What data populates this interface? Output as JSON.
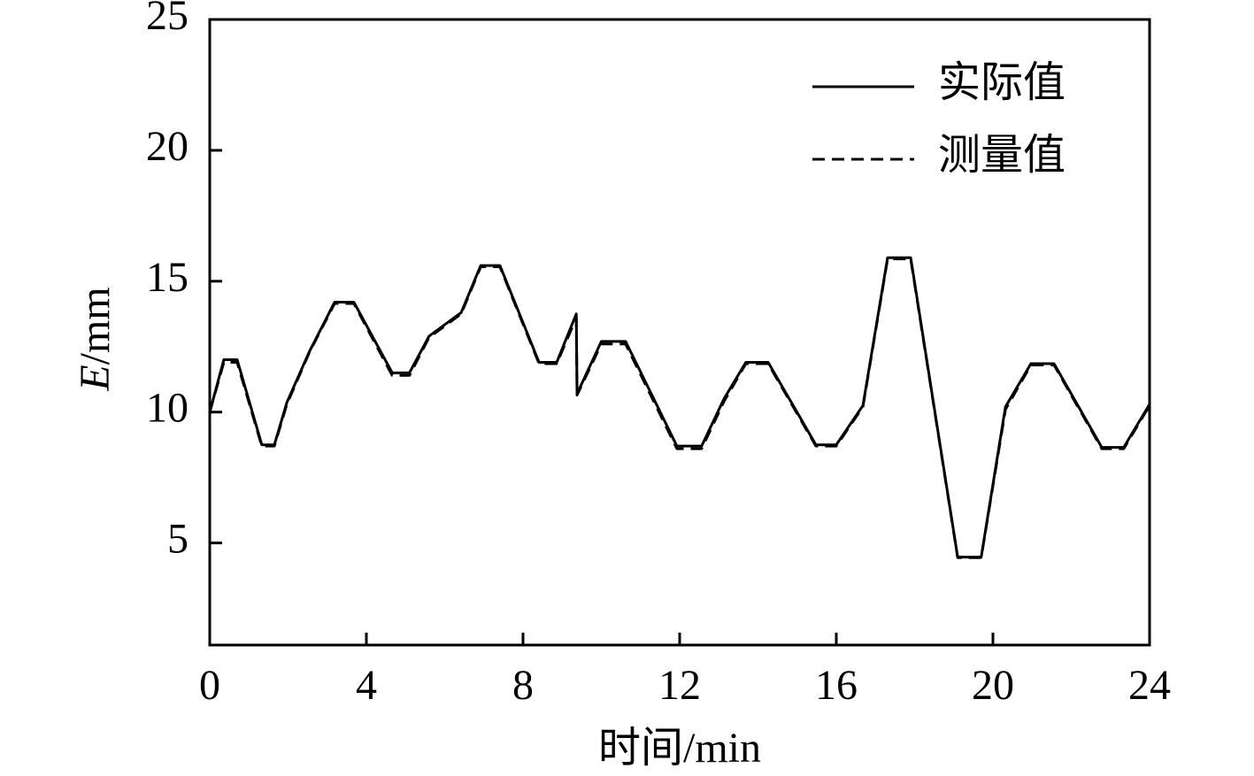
{
  "chart_data": {
    "type": "line",
    "x_label": "时间/min",
    "y_label": {
      "symbol": "E",
      "unit": "/mm"
    },
    "x": [
      0,
      0.36,
      0.7,
      1.33,
      1.65,
      1.97,
      2.55,
      3.19,
      3.68,
      4.66,
      5.1,
      5.6,
      6.42,
      6.92,
      7.41,
      8.41,
      8.86,
      9.36,
      9.38,
      10.0,
      10.62,
      11.93,
      12.56,
      13.13,
      13.69,
      14.26,
      15.48,
      16.0,
      16.68,
      17.31,
      17.9,
      19.1,
      19.7,
      20.32,
      20.97,
      21.56,
      22.78,
      23.34,
      24.0
    ],
    "series": [
      {
        "name": "实际值",
        "color": "#000000",
        "dash": false,
        "values": [
          10.0,
          12.0,
          12.0,
          8.75,
          8.75,
          10.37,
          12.33,
          14.2,
          14.2,
          11.5,
          11.5,
          12.9,
          13.8,
          15.6,
          15.6,
          11.9,
          11.9,
          13.75,
          10.7,
          12.7,
          12.7,
          8.7,
          8.7,
          10.5,
          11.9,
          11.9,
          8.75,
          8.75,
          10.25,
          15.9,
          15.9,
          4.46,
          4.46,
          10.2,
          11.85,
          11.85,
          8.65,
          8.65,
          10.3
        ]
      },
      {
        "name": "测量值",
        "color": "#000000",
        "dash": true,
        "values": [
          10.0,
          11.9,
          11.9,
          8.7,
          8.7,
          10.3,
          12.3,
          14.15,
          14.15,
          11.4,
          11.4,
          12.85,
          13.75,
          15.55,
          15.55,
          11.85,
          11.85,
          13.6,
          10.65,
          12.6,
          12.6,
          8.6,
          8.6,
          10.4,
          11.85,
          11.85,
          8.7,
          8.7,
          10.2,
          15.85,
          15.85,
          4.44,
          4.44,
          10.1,
          11.8,
          11.8,
          8.6,
          8.6,
          10.25
        ]
      }
    ],
    "xlim": [
      0,
      24
    ],
    "xticks": [
      0,
      4,
      8,
      12,
      16,
      20,
      24
    ],
    "ylim": [
      1.1,
      25
    ],
    "yticks": [
      5,
      10,
      15,
      20,
      25
    ],
    "legend": "top-right"
  }
}
